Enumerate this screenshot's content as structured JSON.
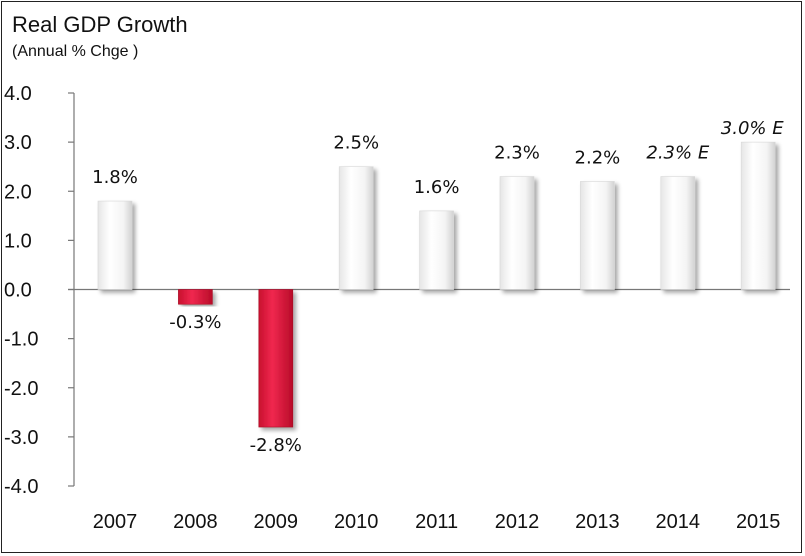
{
  "chart_data": {
    "type": "bar",
    "title": "Real GDP Growth",
    "subtitle": "(Annual % Chge )",
    "categories": [
      "2007",
      "2008",
      "2009",
      "2010",
      "2011",
      "2012",
      "2013",
      "2014",
      "2015"
    ],
    "values": [
      1.8,
      -0.3,
      -2.8,
      2.5,
      1.6,
      2.3,
      2.2,
      2.3,
      3.0
    ],
    "data_labels": [
      "1.8%",
      "-0.3%",
      "-2.8%",
      "2.5%",
      "1.6%",
      "2.3%",
      "2.2%",
      "2.3% E",
      "3.0% E"
    ],
    "estimated": [
      false,
      false,
      false,
      false,
      false,
      false,
      false,
      true,
      true
    ],
    "yticks": [
      "4.0",
      "3.0",
      "2.0",
      "1.0",
      "0.0",
      "-1.0",
      "-2.0",
      "-3.0",
      "-4.0"
    ],
    "ylim": [
      -4.0,
      4.0
    ],
    "grid": false,
    "colors": {
      "positive_bar": "#ffffff",
      "negative_bar": "#e8173f",
      "axis": "#777777"
    }
  }
}
